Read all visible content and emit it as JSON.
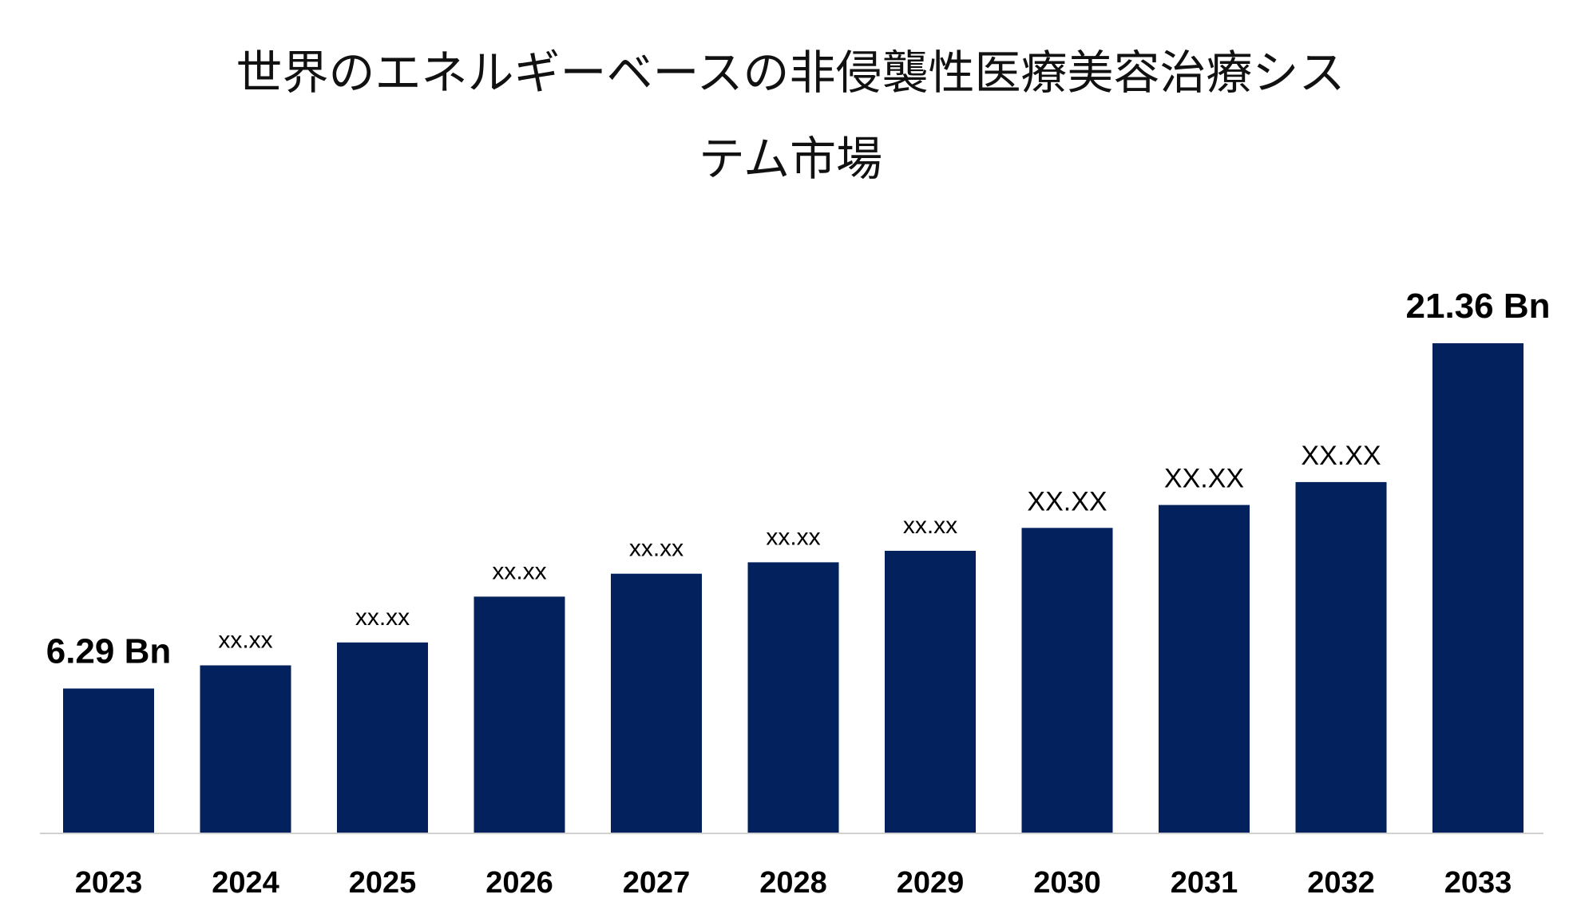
{
  "title_lines": [
    "世界のエネルギーベースの非侵襲性医療美容治療シス",
    "テム市場"
  ],
  "colors": {
    "bar": "#03215C",
    "axis": "#D0D0D0",
    "text": "#000000"
  },
  "chart_data": {
    "type": "bar",
    "title": "世界のエネルギーベースの非侵襲性医療美容治療システム市場",
    "categories": [
      "2023",
      "2024",
      "2025",
      "2026",
      "2027",
      "2028",
      "2029",
      "2030",
      "2031",
      "2032",
      "2033"
    ],
    "values": [
      6.29,
      7.3,
      8.3,
      10.3,
      11.3,
      11.8,
      12.3,
      13.3,
      14.3,
      15.3,
      21.36
    ],
    "data_labels": [
      "6.29 Bn",
      "xx.xx",
      "xx.xx",
      "xx.xx",
      "xx.xx",
      "xx.xx",
      "xx.xx",
      "XX.XX",
      "XX.XX",
      "XX.XX",
      "21.36 Bn"
    ],
    "xlabel": "",
    "ylabel": "",
    "grid": false,
    "legend": "none"
  }
}
